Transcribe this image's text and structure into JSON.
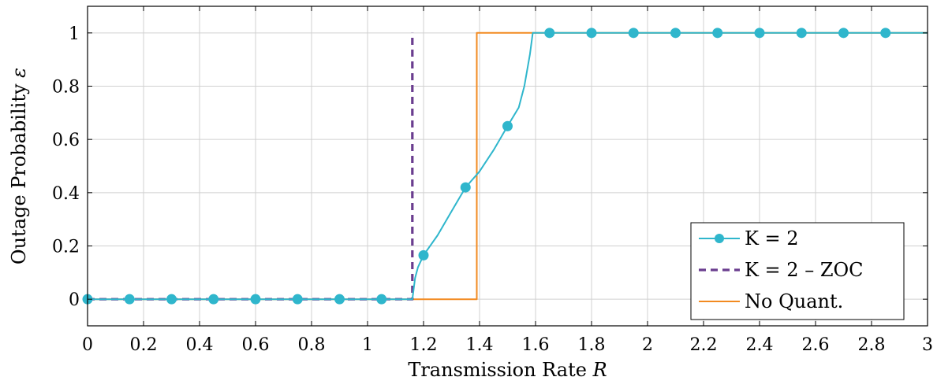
{
  "chart_data": {
    "type": "line",
    "xlabel": "Transmission Rate",
    "xlabel_symbol": "R",
    "ylabel": "Outage Probability",
    "ylabel_symbol": "ε",
    "xlim": [
      0,
      3
    ],
    "ylim": [
      -0.1,
      1.1
    ],
    "xticks": [
      0,
      0.2,
      0.4,
      0.6,
      0.8,
      1,
      1.2,
      1.4,
      1.6,
      1.8,
      2,
      2.2,
      2.4,
      2.6,
      2.8,
      3
    ],
    "xtick_labels": [
      "0",
      "0.2",
      "0.4",
      "0.6",
      "0.8",
      "1",
      "1.2",
      "1.4",
      "1.6",
      "1.8",
      "2",
      "2.2",
      "2.4",
      "2.6",
      "2.8",
      "3"
    ],
    "yticks": [
      0,
      0.2,
      0.4,
      0.6,
      0.8,
      1
    ],
    "ytick_labels": [
      "0",
      "0.2",
      "0.4",
      "0.6",
      "0.8",
      "1"
    ],
    "grid": true,
    "legend_position": "bottom-right",
    "series": [
      {
        "name": "K = 2",
        "color": "#2fb6cc",
        "style": "solid",
        "marker": "circle",
        "curve": [
          [
            0,
            0
          ],
          [
            1.16,
            0
          ],
          [
            1.17,
            0.08
          ],
          [
            1.18,
            0.12
          ],
          [
            1.2,
            0.165
          ],
          [
            1.25,
            0.24
          ],
          [
            1.3,
            0.33
          ],
          [
            1.35,
            0.42
          ],
          [
            1.4,
            0.48
          ],
          [
            1.45,
            0.56
          ],
          [
            1.5,
            0.65
          ],
          [
            1.54,
            0.72
          ],
          [
            1.56,
            0.8
          ],
          [
            1.58,
            0.92
          ],
          [
            1.59,
            1
          ],
          [
            3,
            1
          ]
        ],
        "markers": [
          [
            0,
            0
          ],
          [
            0.15,
            0
          ],
          [
            0.3,
            0
          ],
          [
            0.45,
            0
          ],
          [
            0.6,
            0
          ],
          [
            0.75,
            0
          ],
          [
            0.9,
            0
          ],
          [
            1.05,
            0
          ],
          [
            1.2,
            0.165
          ],
          [
            1.35,
            0.42
          ],
          [
            1.5,
            0.65
          ],
          [
            1.65,
            1
          ],
          [
            1.8,
            1
          ],
          [
            1.95,
            1
          ],
          [
            2.1,
            1
          ],
          [
            2.25,
            1
          ],
          [
            2.4,
            1
          ],
          [
            2.55,
            1
          ],
          [
            2.7,
            1
          ],
          [
            2.85,
            1
          ]
        ]
      },
      {
        "name": "K = 2 – ZOC",
        "color": "#6a3d8f",
        "style": "dashed",
        "marker": "none",
        "curve": [
          [
            0,
            0
          ],
          [
            1.16,
            0
          ],
          [
            1.16,
            1
          ]
        ]
      },
      {
        "name": "No Quant.",
        "color": "#f28a20",
        "style": "solid",
        "marker": "none",
        "curve": [
          [
            0,
            0
          ],
          [
            1.39,
            0
          ],
          [
            1.39,
            1
          ],
          [
            3,
            1
          ]
        ]
      }
    ]
  }
}
